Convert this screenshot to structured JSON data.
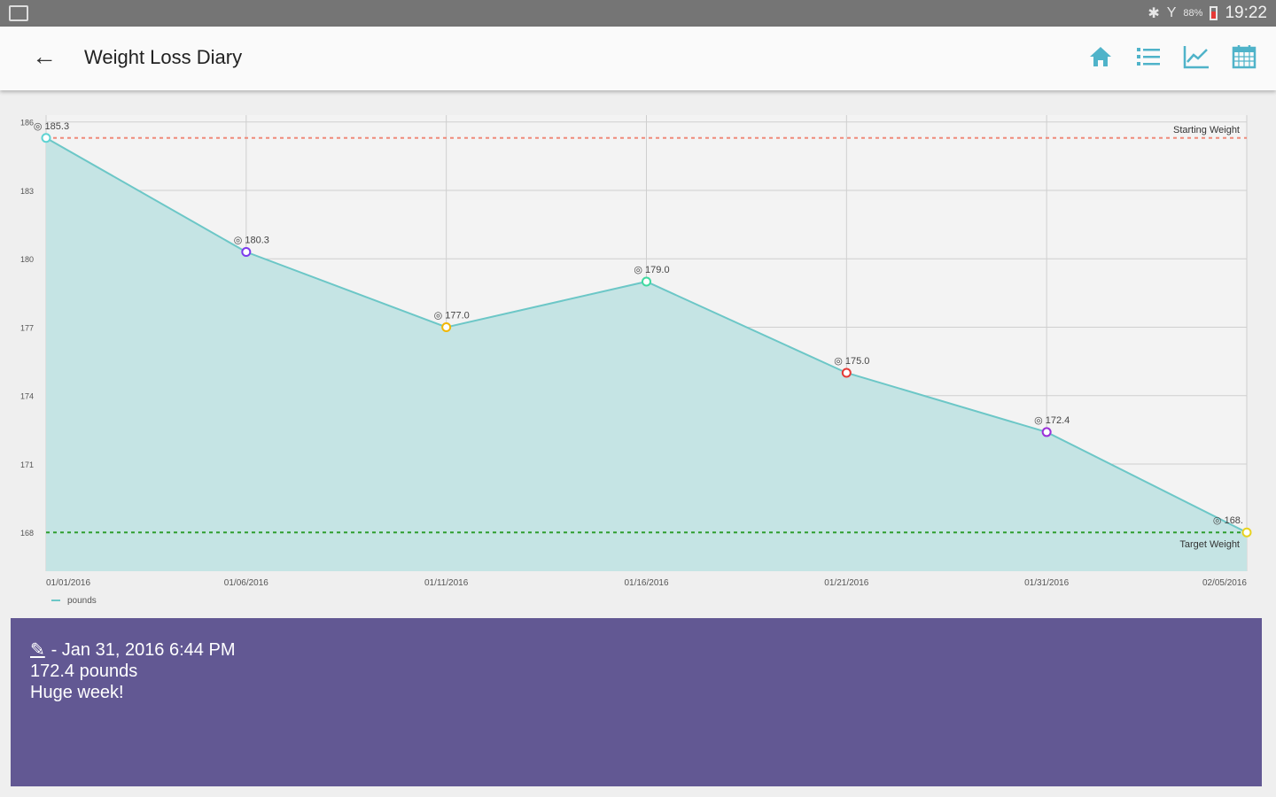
{
  "status_bar": {
    "time": "19:22",
    "battery": "88%"
  },
  "app_bar": {
    "title": "Weight Loss Diary",
    "actions": [
      "home-icon",
      "list-icon",
      "chart-icon",
      "calendar-icon"
    ],
    "accent": "#4fb3c9"
  },
  "chart_data": {
    "type": "area",
    "x": [
      "01/01/2016",
      "01/06/2016",
      "01/11/2016",
      "01/16/2016",
      "01/21/2016",
      "01/31/2016",
      "02/05/2016"
    ],
    "series": [
      {
        "name": "pounds",
        "values": [
          185.3,
          180.3,
          177.0,
          179.0,
          175.0,
          172.4,
          168.0
        ],
        "point_labels": [
          "185.3",
          "180.3",
          "177.0",
          "179.0",
          "175.0",
          "172.4",
          "168."
        ],
        "marker_colors": [
          "#5ed3d3",
          "#7c3aed",
          "#f2b705",
          "#3fd9a0",
          "#e53935",
          "#9b30d9",
          "#e8d21f"
        ],
        "fill": "#c5e4e4",
        "line": "#6cc7c7"
      }
    ],
    "y_ticks": [
      186,
      183,
      180,
      177,
      174,
      171,
      168
    ],
    "ylim": [
      166.3,
      186.3
    ],
    "reference_lines": [
      {
        "label": "Starting Weight",
        "value": 185.3,
        "color": "#ef8a7a"
      },
      {
        "label": "Target Weight",
        "value": 168.0,
        "color": "#2e9e2e"
      }
    ],
    "grid": true,
    "legend": "bottom-left"
  },
  "detail": {
    "datetime": "- Jan 31, 2016 6:44 PM",
    "weight": "172.4 pounds",
    "note": "Huge week!",
    "background": "#625893"
  }
}
